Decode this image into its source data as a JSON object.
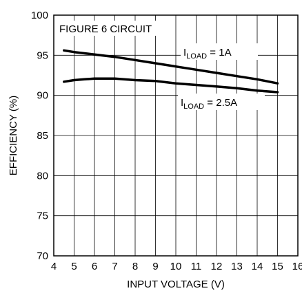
{
  "chart_data": {
    "type": "line",
    "title": "",
    "xlabel": "INPUT VOLTAGE (V)",
    "ylabel": "EFFICIENCY (%)",
    "xlim": [
      4,
      16
    ],
    "ylim": [
      70,
      100
    ],
    "xticks": [
      4,
      5,
      6,
      7,
      8,
      9,
      10,
      11,
      12,
      13,
      14,
      15,
      16
    ],
    "yticks": [
      70,
      75,
      80,
      85,
      90,
      95,
      100
    ],
    "grid": true,
    "legend": "none",
    "annotation": "FIGURE 6 CIRCUIT",
    "series": [
      {
        "label_main": "I",
        "label_sub": "LOAD",
        "label_rest": " = 1A",
        "x": [
          4.5,
          5,
          6,
          7,
          8,
          9,
          10,
          11,
          12,
          13,
          14,
          15
        ],
        "values": [
          95.6,
          95.4,
          95.1,
          94.8,
          94.4,
          94.0,
          93.6,
          93.2,
          92.8,
          92.4,
          92.0,
          91.5
        ]
      },
      {
        "label_main": "I",
        "label_sub": "LOAD",
        "label_rest": " = 2.5A",
        "x": [
          4.5,
          5,
          5.5,
          6,
          7,
          8,
          9,
          10,
          11,
          12,
          13,
          14,
          15
        ],
        "values": [
          91.7,
          91.9,
          92.0,
          92.1,
          92.1,
          91.9,
          91.8,
          91.5,
          91.3,
          91.1,
          90.9,
          90.6,
          90.4
        ]
      }
    ]
  }
}
